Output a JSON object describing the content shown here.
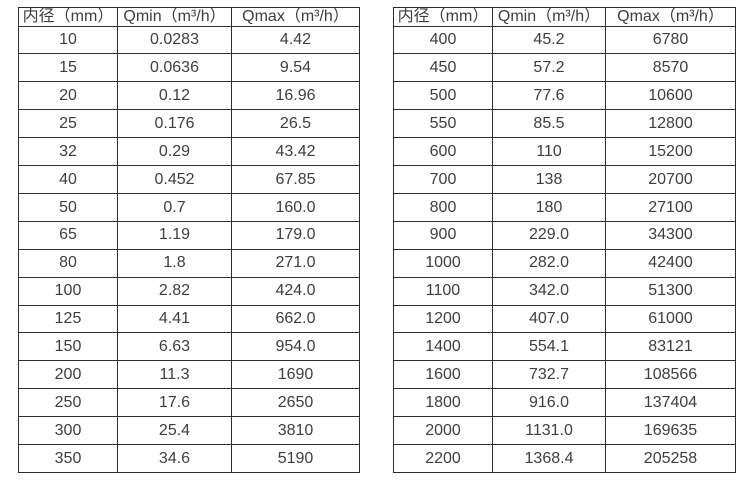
{
  "tables": [
    {
      "name": "small-diameter-table",
      "headers": [
        "内径（mm）",
        "Qmin（m³/h）",
        "Qmax（m³/h）"
      ],
      "rows": [
        [
          "10",
          "0.0283",
          "4.42"
        ],
        [
          "15",
          "0.0636",
          "9.54"
        ],
        [
          "20",
          "0.12",
          "16.96"
        ],
        [
          "25",
          "0.176",
          "26.5"
        ],
        [
          "32",
          "0.29",
          "43.42"
        ],
        [
          "40",
          "0.452",
          "67.85"
        ],
        [
          "50",
          "0.7",
          "160.0"
        ],
        [
          "65",
          "1.19",
          "179.0"
        ],
        [
          "80",
          "1.8",
          "271.0"
        ],
        [
          "100",
          "2.82",
          "424.0"
        ],
        [
          "125",
          "4.41",
          "662.0"
        ],
        [
          "150",
          "6.63",
          "954.0"
        ],
        [
          "200",
          "11.3",
          "1690"
        ],
        [
          "250",
          "17.6",
          "2650"
        ],
        [
          "300",
          "25.4",
          "3810"
        ],
        [
          "350",
          "34.6",
          "5190"
        ]
      ]
    },
    {
      "name": "large-diameter-table",
      "headers": [
        "内径（mm）",
        "Qmin（m³/h）",
        "Qmax（m³/h）"
      ],
      "rows": [
        [
          "400",
          "45.2",
          "6780"
        ],
        [
          "450",
          "57.2",
          "8570"
        ],
        [
          "500",
          "77.6",
          "10600"
        ],
        [
          "550",
          "85.5",
          "12800"
        ],
        [
          "600",
          "110",
          "15200"
        ],
        [
          "700",
          "138",
          "20700"
        ],
        [
          "800",
          "180",
          "27100"
        ],
        [
          "900",
          "229.0",
          "34300"
        ],
        [
          "1000",
          "282.0",
          "42400"
        ],
        [
          "1100",
          "342.0",
          "51300"
        ],
        [
          "1200",
          "407.0",
          "61000"
        ],
        [
          "1400",
          "554.1",
          "83121"
        ],
        [
          "1600",
          "732.7",
          "108566"
        ],
        [
          "1800",
          "916.0",
          "137404"
        ],
        [
          "2000",
          "1131.0",
          "169635"
        ],
        [
          "2200",
          "1368.4",
          "205258"
        ]
      ]
    }
  ],
  "colors": {
    "border": "#2d2d2d",
    "text": "#3e3e3e",
    "background": "#ffffff"
  }
}
